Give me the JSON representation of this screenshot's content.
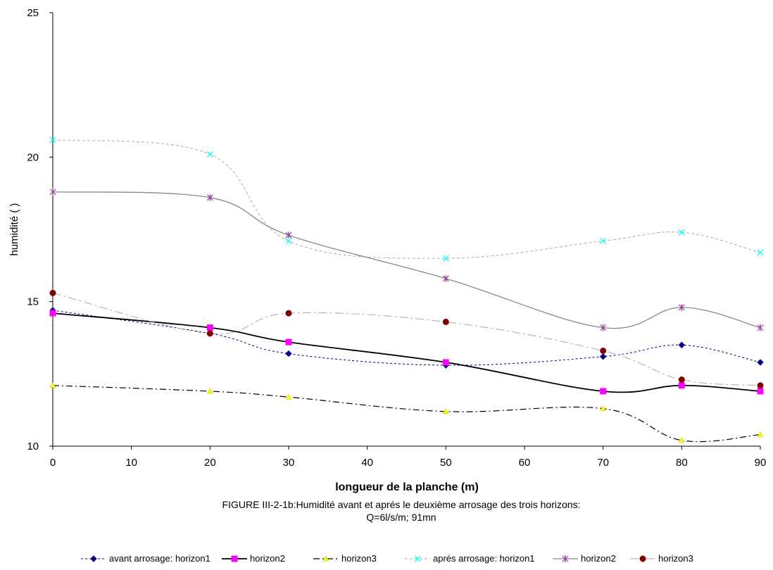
{
  "chart_data": {
    "type": "line",
    "x": [
      0,
      20,
      30,
      50,
      70,
      80,
      90
    ],
    "xlim": [
      0,
      90
    ],
    "ylim": [
      10,
      25
    ],
    "xticks": [
      "0",
      "10",
      "20",
      "30",
      "40",
      "50",
      "60",
      "70",
      "80",
      "90"
    ],
    "yticks": [
      "10",
      "15",
      "20",
      "25"
    ],
    "xlabel": "longueur de la planche (m)",
    "ylabel": "humidité ( )",
    "caption_line1": "FIGURE III-2-1b:Humidité avant et aprés le deuxième arrosage des trois horizons:",
    "caption_line2": "Q=6l/s/m; 91mn",
    "grid": false,
    "legend_position": "bottom",
    "series": [
      {
        "name": "avant arrosage: horizon1",
        "values": [
          14.7,
          13.9,
          13.2,
          12.8,
          13.1,
          13.5,
          12.9
        ],
        "color": "#000080",
        "marker": "diamond",
        "dash": "3,3",
        "width": 1
      },
      {
        "name": "horizon2",
        "values": [
          14.6,
          14.1,
          13.6,
          12.9,
          11.9,
          12.1,
          11.9
        ],
        "color": "#ff00ff",
        "marker": "square",
        "dash": "",
        "width": 1.8,
        "lineColor": "#000000"
      },
      {
        "name": "horizon3",
        "values": [
          12.1,
          11.9,
          11.7,
          11.2,
          11.3,
          10.2,
          10.4
        ],
        "color": "#ffff00",
        "marker": "triangle",
        "dash": "9,4,2,4",
        "width": 1.2,
        "lineColor": "#000000"
      },
      {
        "name": "aprés arrosage: horizon1",
        "values": [
          20.6,
          20.1,
          17.1,
          16.5,
          17.1,
          17.4,
          16.7
        ],
        "color": "#00ffff",
        "marker": "x",
        "dash": "4,3",
        "width": 1,
        "lineColor": "#aaaaaa"
      },
      {
        "name": "horizon2",
        "values": [
          18.8,
          18.6,
          17.3,
          15.8,
          14.1,
          14.8,
          14.1
        ],
        "color": "#993399",
        "marker": "star",
        "dash": "",
        "width": 1.3,
        "lineColor": "#888888"
      },
      {
        "name": "horizon3",
        "values": [
          15.3,
          13.9,
          14.6,
          14.3,
          13.3,
          12.3,
          12.1
        ],
        "color": "#800000",
        "marker": "circle",
        "dash": "12,4,3,4",
        "width": 1,
        "lineColor": "#aaaaaa"
      }
    ]
  }
}
